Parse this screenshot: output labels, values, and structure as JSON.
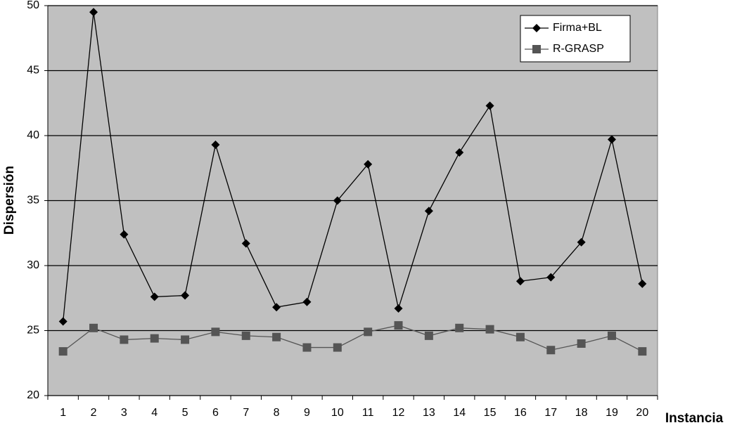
{
  "chart_data": {
    "type": "line",
    "x_label": "Instancia",
    "y_label": "Dispersión",
    "categories": [
      "1",
      "2",
      "3",
      "4",
      "5",
      "6",
      "7",
      "8",
      "9",
      "10",
      "11",
      "12",
      "13",
      "14",
      "15",
      "16",
      "17",
      "18",
      "19",
      "20"
    ],
    "series": [
      {
        "name": "Firma+BL",
        "color": "#000000",
        "marker": "diamond",
        "values": [
          25.7,
          49.5,
          32.4,
          27.6,
          27.7,
          39.3,
          31.7,
          26.8,
          27.2,
          35.0,
          37.8,
          26.7,
          34.2,
          38.7,
          42.3,
          28.8,
          29.1,
          31.8,
          39.7,
          28.6
        ]
      },
      {
        "name": "R-GRASP",
        "color": "#555555",
        "marker": "square",
        "values": [
          23.4,
          25.2,
          24.3,
          24.4,
          24.3,
          24.9,
          24.6,
          24.5,
          23.7,
          23.7,
          24.9,
          25.4,
          24.6,
          25.2,
          25.1,
          24.5,
          23.5,
          24.0,
          24.6,
          23.4
        ]
      }
    ],
    "ylim": [
      20,
      50
    ],
    "yticks": [
      20,
      25,
      30,
      35,
      40,
      45,
      50
    ],
    "grid": true,
    "legend": "top-right",
    "background": "#c0c0c0"
  }
}
